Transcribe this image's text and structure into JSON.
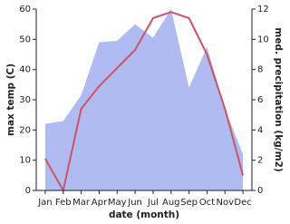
{
  "chart_data": {
    "type": "line",
    "x_label": "date (month)",
    "y_label": "max temp (C)",
    "y2_label": "med. precipitation (kg/m2)",
    "categories": [
      "Jan",
      "Feb",
      "Mar",
      "Apr",
      "May",
      "Jun",
      "Jul",
      "Aug",
      "Sep",
      "Oct",
      "Nov",
      "Dec"
    ],
    "ylim": [
      0,
      60
    ],
    "yticks": [
      0,
      10,
      20,
      30,
      40,
      50,
      60
    ],
    "y2lim": [
      0,
      12
    ],
    "y2ticks": [
      0,
      2,
      4,
      6,
      8,
      10,
      12
    ],
    "series": [
      {
        "name": "med. precipitation",
        "type": "area",
        "axis": "y2",
        "color": "#b0bbf2",
        "values": [
          4.4,
          4.6,
          6.3,
          9.8,
          9.9,
          11,
          10.1,
          12,
          6.8,
          9.5,
          5.4,
          2.4
        ]
      },
      {
        "name": "max temp",
        "type": "line",
        "color": "#cc5566",
        "values": [
          10.5,
          0,
          27,
          34.5,
          40.5,
          46.5,
          57,
          59,
          57,
          45,
          27,
          5
        ]
      }
    ]
  }
}
